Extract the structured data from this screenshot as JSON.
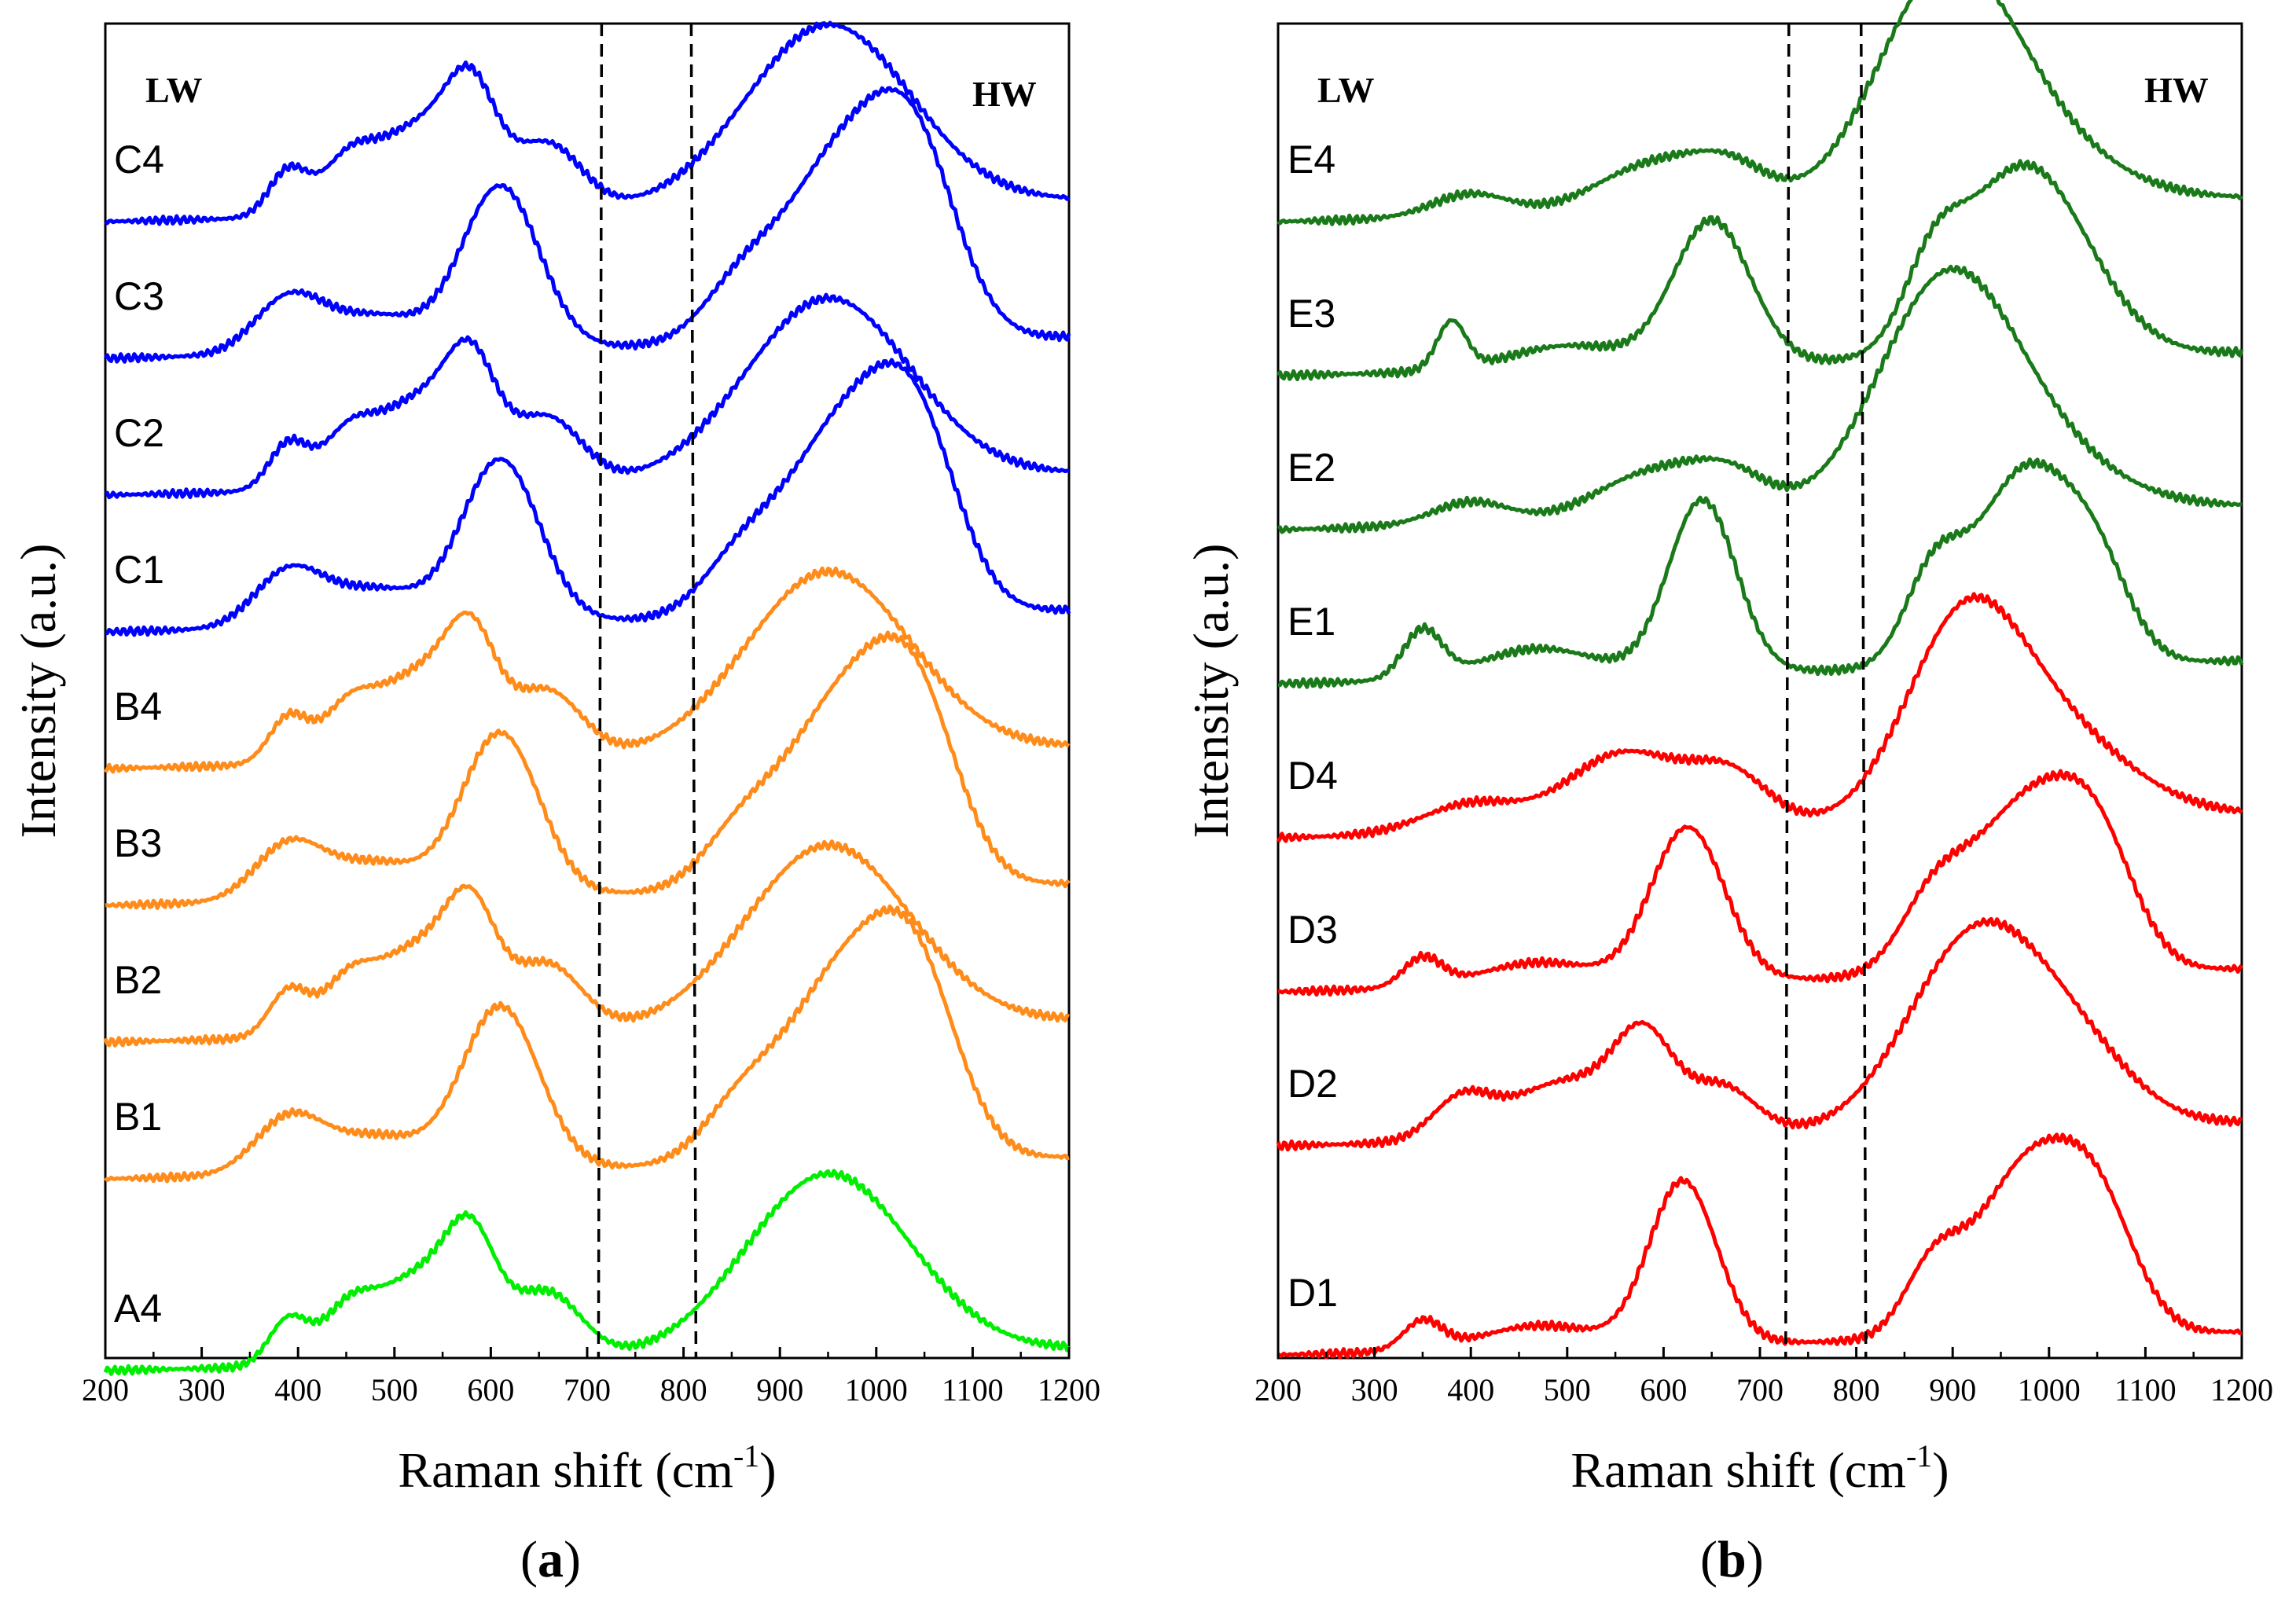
{
  "chart_data": [
    {
      "type": "line",
      "panel_label": "a",
      "xlabel": "Raman shift (cm",
      "xlabel_sup": "-1",
      "xlabel_close": ")",
      "ylabel": "Intensity (a.u.)",
      "xlim": [
        200,
        1200
      ],
      "xticks": [
        "200",
        "300",
        "400",
        "500",
        "600",
        "700",
        "800",
        "900",
        "1000",
        "1100",
        "1200"
      ],
      "region_labels": {
        "low": "LW",
        "high": "HW"
      },
      "dashed_lines_x": [
        715,
        808
      ],
      "series": [
        {
          "name": "C4",
          "color": "#0000ff",
          "peaks": [
            [
              390,
              0.25,
              20
            ],
            [
              450,
              0.2,
              25
            ],
            [
              530,
              0.5,
              55
            ],
            [
              580,
              0.45,
              25
            ],
            [
              660,
              0.35,
              35
            ],
            [
              950,
              1.0,
              85
            ]
          ]
        },
        {
          "name": "C3",
          "color": "#0000ff",
          "peaks": [
            [
              390,
              0.3,
              35
            ],
            [
              480,
              0.2,
              50
            ],
            [
              610,
              0.9,
              40
            ],
            [
              960,
              0.95,
              55
            ],
            [
              1040,
              0.95,
              45
            ],
            [
              860,
              0.3,
              40
            ]
          ]
        },
        {
          "name": "C2",
          "color": "#0000ff",
          "peaks": [
            [
              390,
              0.25,
              20
            ],
            [
              450,
              0.2,
              25
            ],
            [
              530,
              0.5,
              55
            ],
            [
              580,
              0.45,
              25
            ],
            [
              660,
              0.35,
              35
            ],
            [
              950,
              1.0,
              85
            ]
          ]
        },
        {
          "name": "C1",
          "color": "#0000ff",
          "peaks": [
            [
              390,
              0.3,
              35
            ],
            [
              480,
              0.2,
              50
            ],
            [
              610,
              0.9,
              40
            ],
            [
              960,
              0.95,
              55
            ],
            [
              1040,
              0.95,
              45
            ],
            [
              860,
              0.3,
              40
            ]
          ]
        },
        {
          "name": "B4",
          "color": "#ff8c1a",
          "peaks": [
            [
              390,
              0.25,
              20
            ],
            [
              450,
              0.2,
              25
            ],
            [
              530,
              0.5,
              55
            ],
            [
              580,
              0.45,
              25
            ],
            [
              660,
              0.35,
              35
            ],
            [
              950,
              1.0,
              85
            ]
          ]
        },
        {
          "name": "B3",
          "color": "#ff8c1a",
          "peaks": [
            [
              390,
              0.3,
              35
            ],
            [
              480,
              0.2,
              50
            ],
            [
              610,
              0.9,
              40
            ],
            [
              960,
              0.95,
              55
            ],
            [
              1040,
              0.95,
              45
            ],
            [
              860,
              0.3,
              40
            ]
          ]
        },
        {
          "name": "B2",
          "color": "#ff8c1a",
          "peaks": [
            [
              390,
              0.25,
              20
            ],
            [
              450,
              0.2,
              25
            ],
            [
              530,
              0.5,
              55
            ],
            [
              580,
              0.45,
              25
            ],
            [
              660,
              0.35,
              35
            ],
            [
              950,
              1.0,
              85
            ]
          ]
        },
        {
          "name": "B1",
          "color": "#ff8c1a",
          "peaks": [
            [
              390,
              0.3,
              35
            ],
            [
              480,
              0.2,
              50
            ],
            [
              610,
              0.9,
              40
            ],
            [
              960,
              0.95,
              55
            ],
            [
              1040,
              0.95,
              45
            ],
            [
              860,
              0.3,
              40
            ]
          ]
        },
        {
          "name": "A4",
          "color": "#00ee00",
          "peaks": [
            [
              390,
              0.25,
              20
            ],
            [
              450,
              0.2,
              25
            ],
            [
              530,
              0.5,
              55
            ],
            [
              580,
              0.45,
              25
            ],
            [
              660,
              0.35,
              35
            ],
            [
              950,
              1.0,
              85
            ]
          ]
        }
      ]
    },
    {
      "type": "line",
      "panel_label": "b",
      "xlabel": "Raman shift (cm",
      "xlabel_sup": "-1",
      "xlabel_close": ")",
      "ylabel": "Intensity (a.u.)",
      "xlim": [
        200,
        1200
      ],
      "xticks": [
        "200",
        "300",
        "400",
        "500",
        "600",
        "700",
        "800",
        "900",
        "1000",
        "1100",
        "1200"
      ],
      "region_labels": {
        "low": "LW",
        "high": "HW"
      },
      "dashed_lines_x": [
        730,
        805
      ],
      "series": [
        {
          "name": "E4",
          "color": "#1a7a1a",
          "peaks": [
            [
              400,
              0.12,
              40
            ],
            [
              590,
              0.25,
              60
            ],
            [
              670,
              0.18,
              40
            ],
            [
              890,
              1.0,
              70
            ],
            [
              960,
              0.35,
              90
            ]
          ]
        },
        {
          "name": "E3",
          "color": "#1a7a1a",
          "peaks": [
            [
              380,
              0.25,
              15
            ],
            [
              500,
              0.12,
              60
            ],
            [
              650,
              0.75,
              40
            ],
            [
              880,
              0.35,
              30
            ],
            [
              975,
              1.0,
              65
            ]
          ]
        },
        {
          "name": "E2",
          "color": "#1a7a1a",
          "peaks": [
            [
              400,
              0.12,
              40
            ],
            [
              590,
              0.25,
              60
            ],
            [
              670,
              0.18,
              40
            ],
            [
              890,
              1.0,
              70
            ],
            [
              960,
              0.35,
              90
            ]
          ]
        },
        {
          "name": "E1",
          "color": "#1a7a1a",
          "peaks": [
            [
              350,
              0.25,
              20
            ],
            [
              470,
              0.15,
              60
            ],
            [
              640,
              0.9,
              35
            ],
            [
              880,
              0.45,
              30
            ],
            [
              975,
              1.0,
              50
            ],
            [
              1050,
              0.4,
              35
            ]
          ]
        },
        {
          "name": "D4",
          "color": "#ff0000",
          "peaks": [
            [
              400,
              0.15,
              50
            ],
            [
              560,
              0.4,
              60
            ],
            [
              670,
              0.25,
              40
            ],
            [
              910,
              0.9,
              60
            ],
            [
              1000,
              0.45,
              80
            ]
          ]
        },
        {
          "name": "D3",
          "color": "#ff0000",
          "peaks": [
            [
              350,
              0.15,
              20
            ],
            [
              470,
              0.12,
              60
            ],
            [
              625,
              0.8,
              38
            ],
            [
              880,
              0.35,
              35
            ],
            [
              975,
              0.85,
              55
            ],
            [
              1050,
              0.55,
              40
            ]
          ]
        },
        {
          "name": "D2",
          "color": "#ff0000",
          "peaks": [
            [
              390,
              0.2,
              30
            ],
            [
              500,
              0.3,
              60
            ],
            [
              580,
              0.45,
              30
            ],
            [
              660,
              0.25,
              35
            ],
            [
              925,
              1.0,
              70
            ],
            [
              1030,
              0.3,
              60
            ]
          ]
        },
        {
          "name": "D1",
          "color": "#ff0000",
          "peaks": [
            [
              350,
              0.15,
              20
            ],
            [
              470,
              0.12,
              60
            ],
            [
              620,
              0.85,
              35
            ],
            [
              880,
              0.35,
              30
            ],
            [
              975,
              0.85,
              50
            ],
            [
              1050,
              0.6,
              40
            ]
          ]
        }
      ]
    }
  ]
}
